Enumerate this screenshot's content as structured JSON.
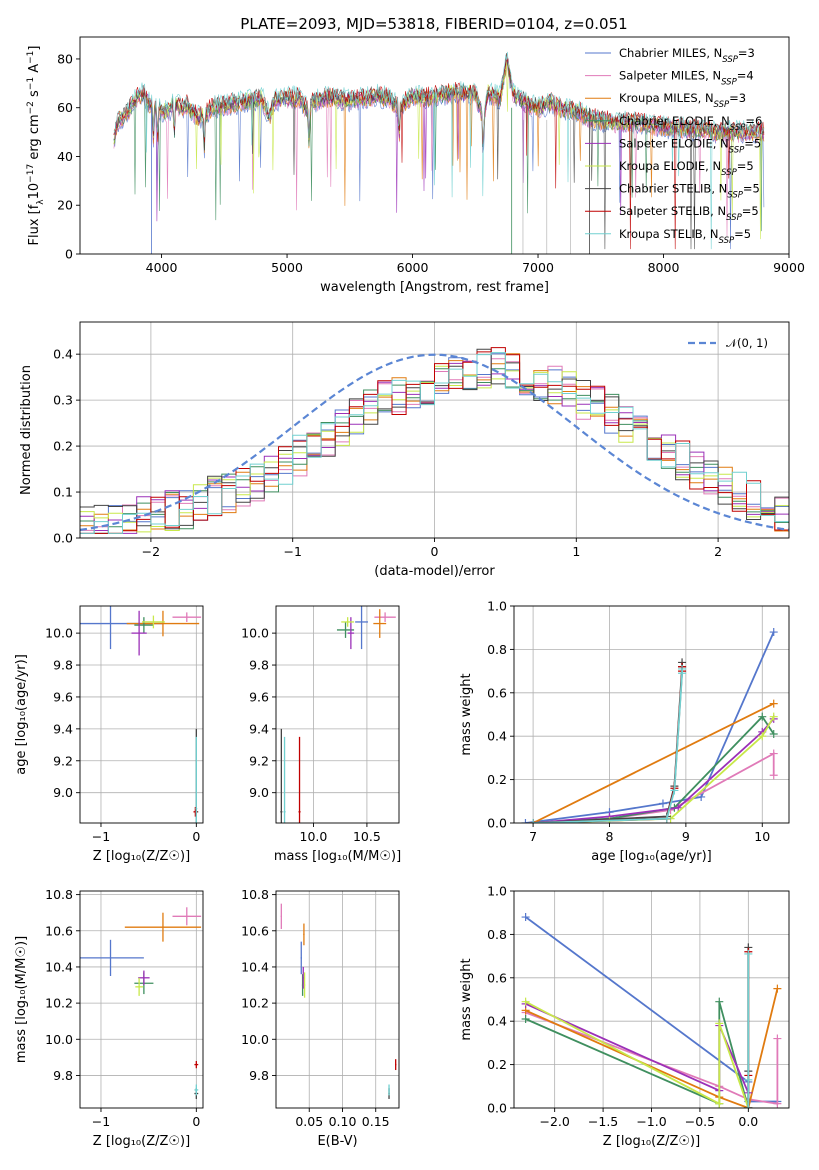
{
  "figure_title": "PLATE=2093, MJD=53818, FIBERID=0104, z=0.051",
  "colors": [
    "#5577cc",
    "#e07ab8",
    "#e07b10",
    "#3f8f5f",
    "#9b30b8",
    "#c8e84a",
    "#444444",
    "#c00000",
    "#70d0d0"
  ],
  "chart_data": [
    {
      "type": "line",
      "name": "spectrum",
      "xlabel": "wavelength [Angstrom, rest frame]",
      "ylabel_parts": [
        "Flux [f",
        "λ",
        "10",
        "−17",
        " erg cm",
        "−2",
        " s",
        "−1",
        " A",
        "−1",
        "]"
      ],
      "xlim": [
        3350,
        9000
      ],
      "ylim": [
        0,
        89
      ],
      "xticks": [
        4000,
        5000,
        6000,
        7000,
        8000,
        9000
      ],
      "yticks": [
        0,
        20,
        40,
        60,
        80
      ],
      "legend_position": "upper-right",
      "legend": [
        {
          "label": "Chabrier MILES, N",
          "sub": "SSP",
          "tail": "=3"
        },
        {
          "label": "Salpeter MILES, N",
          "sub": "SSP",
          "tail": "=4"
        },
        {
          "label": "Kroupa MILES, N",
          "sub": "SSP",
          "tail": "=3"
        },
        {
          "label": "Chabrier ELODIE, N",
          "sub": "SSP",
          "tail": "=6"
        },
        {
          "label": "Salpeter ELODIE, N",
          "sub": "SSP",
          "tail": "=5"
        },
        {
          "label": "Kroupa ELODIE, N",
          "sub": "SSP",
          "tail": "=5"
        },
        {
          "label": "Chabrier STELIB, N",
          "sub": "SSP",
          "tail": "=5"
        },
        {
          "label": "Salpeter STELIB, N",
          "sub": "SSP",
          "tail": "=5"
        },
        {
          "label": "Kroupa STELIB, N",
          "sub": "SSP",
          "tail": "=5"
        }
      ],
      "x": [
        3620,
        3650,
        3700,
        3750,
        3800,
        3850,
        3900,
        3950,
        4000,
        4050,
        4100,
        4150,
        4200,
        4250,
        4300,
        4350,
        4400,
        4500,
        4600,
        4700,
        4800,
        4861,
        4900,
        5000,
        5100,
        5175,
        5200,
        5300,
        5400,
        5500,
        5600,
        5700,
        5800,
        5893,
        5950,
        6000,
        6100,
        6200,
        6300,
        6400,
        6500,
        6563,
        6600,
        6700,
        6750,
        6800,
        6900,
        7000,
        7100,
        7200,
        7300,
        7400,
        7500,
        7600,
        7700,
        7800,
        7900,
        8000,
        8100,
        8200,
        8300,
        8400,
        8500,
        8600,
        8700,
        8800
      ],
      "y": [
        47,
        54,
        57,
        60,
        64,
        66,
        62,
        60,
        59,
        58,
        62,
        60,
        61,
        58,
        56,
        57,
        60,
        61,
        62,
        63,
        64,
        56,
        63,
        64,
        64,
        58,
        62,
        64,
        64,
        63,
        64,
        65,
        64,
        60,
        63,
        65,
        64,
        65,
        66,
        66,
        66,
        55,
        66,
        64,
        80,
        66,
        62,
        60,
        62,
        59,
        59,
        56,
        55,
        54,
        54,
        54,
        53,
        52,
        52,
        51,
        51,
        50,
        50,
        50,
        50,
        50
      ]
    },
    {
      "type": "line",
      "name": "residual-histogram",
      "xlabel": "(data-model)/error",
      "ylabel": "Normed distribution",
      "xlim": [
        -2.5,
        2.5
      ],
      "ylim": [
        0,
        0.47
      ],
      "xticks": [
        -2,
        -1,
        0,
        1,
        2
      ],
      "yticks": [
        0.0,
        0.1,
        0.2,
        0.3,
        0.4
      ],
      "legend_position": "upper-right",
      "legend": [
        {
          "label": "𝒩(0, 1)"
        }
      ],
      "bin_width": 0.1,
      "bin_start": -2.5,
      "base": [
        0.03,
        0.03,
        0.035,
        0.04,
        0.045,
        0.05,
        0.06,
        0.065,
        0.075,
        0.09,
        0.1,
        0.11,
        0.125,
        0.14,
        0.16,
        0.18,
        0.2,
        0.22,
        0.24,
        0.26,
        0.28,
        0.3,
        0.31,
        0.32,
        0.33,
        0.34,
        0.35,
        0.36,
        0.37,
        0.37,
        0.36,
        0.35,
        0.34,
        0.33,
        0.32,
        0.3,
        0.29,
        0.27,
        0.25,
        0.23,
        0.21,
        0.19,
        0.17,
        0.15,
        0.13,
        0.11,
        0.1,
        0.085,
        0.07,
        0.06
      ]
    },
    {
      "type": "scatter",
      "name": "age-vs-metallicity",
      "xlabel": "Z [log₁₀(Z/Z☉)]",
      "ylabel": "age  [log₁₀(age/yr)]",
      "xlim": [
        -1.22,
        0.07
      ],
      "ylim": [
        8.81,
        10.17
      ],
      "xticks": [
        -1,
        0
      ],
      "xtick_labels": [
        "−1",
        "0"
      ],
      "yticks": [
        9.0,
        9.2,
        9.4,
        9.6,
        9.8,
        10.0
      ],
      "points": [
        {
          "s": 0,
          "x": -0.9,
          "y": 10.06,
          "xe": 0.55,
          "ye": 0.16
        },
        {
          "s": 1,
          "x": -0.1,
          "y": 10.1,
          "xe": 0.15,
          "ye": 0.03
        },
        {
          "s": 2,
          "x": -0.35,
          "y": 10.06,
          "xe": 0.38,
          "ye": 0.08
        },
        {
          "s": 3,
          "x": -0.55,
          "y": 10.05,
          "xe": 0.1,
          "ye": 0.05
        },
        {
          "s": 4,
          "x": -0.6,
          "y": 10.0,
          "xe": 0.08,
          "ye": 0.14
        },
        {
          "s": 5,
          "x": -0.45,
          "y": 10.07,
          "xe": 0.12,
          "ye": 0.04
        },
        {
          "s": 6,
          "x": 0.0,
          "y": 8.88,
          "xe": 0.02,
          "ye": 0.52
        },
        {
          "s": 7,
          "x": -0.01,
          "y": 8.88,
          "xe": 0.02,
          "ye": 0.03
        },
        {
          "s": 8,
          "x": 0.0,
          "y": 8.9,
          "xe": 0.01,
          "ye": 0.45
        }
      ]
    },
    {
      "type": "scatter",
      "name": "age-vs-mass",
      "xlabel": "mass [log₁₀(M/M☉)]",
      "ylabel": "",
      "xlim": [
        9.65,
        10.8
      ],
      "ylim": [
        8.81,
        10.17
      ],
      "xticks": [
        10.0,
        10.5
      ],
      "xtick_labels": [
        "10.0",
        "10.5"
      ],
      "yticks": [
        9.0,
        9.2,
        9.4,
        9.6,
        9.8,
        10.0
      ],
      "points": [
        {
          "s": 0,
          "x": 10.45,
          "y": 10.07,
          "xe": 0.06,
          "ye": 0.17
        },
        {
          "s": 1,
          "x": 10.67,
          "y": 10.1,
          "xe": 0.1,
          "ye": 0.03
        },
        {
          "s": 2,
          "x": 10.62,
          "y": 10.06,
          "xe": 0.06,
          "ye": 0.09
        },
        {
          "s": 3,
          "x": 10.3,
          "y": 10.02,
          "xe": 0.08,
          "ye": 0.05
        },
        {
          "s": 4,
          "x": 10.35,
          "y": 10.0,
          "xe": 0.03,
          "ye": 0.1
        },
        {
          "s": 5,
          "x": 10.32,
          "y": 10.07,
          "xe": 0.06,
          "ye": 0.03
        },
        {
          "s": 6,
          "x": 9.7,
          "y": 8.88,
          "xe": 0.01,
          "ye": 0.52
        },
        {
          "s": 7,
          "x": 9.87,
          "y": 8.88,
          "xe": 0.01,
          "ye": 0.47
        },
        {
          "s": 8,
          "x": 9.73,
          "y": 8.88,
          "xe": 0.01,
          "ye": 0.47
        }
      ]
    },
    {
      "type": "line",
      "name": "mass-weight-vs-age",
      "xlabel": "age  [log₁₀(age/yr)]",
      "ylabel": "mass weight",
      "xlim": [
        6.75,
        10.35
      ],
      "ylim": [
        0,
        1.0
      ],
      "xticks": [
        7,
        8,
        9,
        10
      ],
      "yticks": [
        0.0,
        0.2,
        0.4,
        0.6,
        0.8,
        1.0
      ],
      "series": [
        {
          "s": 0,
          "x": [
            6.9,
            8.0,
            8.7,
            9.2,
            10.15
          ],
          "y": [
            0.0,
            0.05,
            0.09,
            0.12,
            0.88
          ]
        },
        {
          "s": 1,
          "x": [
            7.0,
            8.0,
            8.8,
            10.15,
            10.15
          ],
          "y": [
            0.0,
            0.02,
            0.06,
            0.32,
            0.22
          ]
        },
        {
          "s": 2,
          "x": [
            7.0,
            10.15
          ],
          "y": [
            0.0,
            0.55
          ]
        },
        {
          "s": 3,
          "x": [
            7.0,
            8.0,
            8.85,
            10.0,
            10.15
          ],
          "y": [
            0.0,
            0.02,
            0.07,
            0.49,
            0.41
          ]
        },
        {
          "s": 4,
          "x": [
            7.0,
            8.0,
            8.9,
            10.0,
            10.15
          ],
          "y": [
            0.0,
            0.03,
            0.07,
            0.42,
            0.48
          ]
        },
        {
          "s": 5,
          "x": [
            7.0,
            8.0,
            8.8,
            10.0,
            10.15
          ],
          "y": [
            0.0,
            0.01,
            0.02,
            0.4,
            0.49
          ]
        },
        {
          "s": 6,
          "x": [
            7.0,
            8.75,
            8.85,
            8.95,
            8.95
          ],
          "y": [
            0.0,
            0.03,
            0.17,
            0.72,
            0.74
          ]
        },
        {
          "s": 7,
          "x": [
            7.0,
            8.75,
            8.85,
            8.95,
            8.95
          ],
          "y": [
            0.0,
            0.02,
            0.16,
            0.7,
            0.72
          ]
        },
        {
          "s": 8,
          "x": [
            7.0,
            8.75,
            8.85,
            8.95,
            8.95
          ],
          "y": [
            0.0,
            0.02,
            0.15,
            0.69,
            0.71
          ]
        }
      ]
    },
    {
      "type": "scatter",
      "name": "mass-vs-metallicity",
      "xlabel": "Z [log₁₀(Z/Z☉)]",
      "ylabel": "mass [log₁₀(M/M☉)]",
      "xlim": [
        -1.22,
        0.07
      ],
      "ylim": [
        9.62,
        10.82
      ],
      "xticks": [
        -1,
        0
      ],
      "xtick_labels": [
        "−1",
        "0"
      ],
      "yticks": [
        9.8,
        10.0,
        10.2,
        10.4,
        10.6,
        10.8
      ],
      "points": [
        {
          "s": 0,
          "x": -0.9,
          "y": 10.45,
          "xe": 0.35,
          "ye": 0.1
        },
        {
          "s": 1,
          "x": -0.1,
          "y": 10.68,
          "xe": 0.15,
          "ye": 0.05
        },
        {
          "s": 2,
          "x": -0.35,
          "y": 10.62,
          "xe": 0.4,
          "ye": 0.08
        },
        {
          "s": 3,
          "x": -0.55,
          "y": 10.31,
          "xe": 0.1,
          "ye": 0.06
        },
        {
          "s": 4,
          "x": -0.55,
          "y": 10.34,
          "xe": 0.06,
          "ye": 0.04
        },
        {
          "s": 5,
          "x": -0.6,
          "y": 10.29,
          "xe": 0.04,
          "ye": 0.05
        },
        {
          "s": 6,
          "x": 0.0,
          "y": 9.7,
          "xe": 0.02,
          "ye": 0.03
        },
        {
          "s": 7,
          "x": 0.0,
          "y": 9.86,
          "xe": 0.02,
          "ye": 0.02
        },
        {
          "s": 8,
          "x": 0.0,
          "y": 9.72,
          "xe": 0.02,
          "ye": 0.03
        }
      ]
    },
    {
      "type": "scatter",
      "name": "mass-vs-ebv",
      "xlabel": "E(B-V)",
      "ylabel": "",
      "xlim": [
        0.0,
        0.185
      ],
      "ylim": [
        9.62,
        10.82
      ],
      "xticks": [
        0.05,
        0.1,
        0.15
      ],
      "xtick_labels": [
        "0.05",
        "0.10",
        "0.15"
      ],
      "yticks": [
        9.8,
        10.0,
        10.2,
        10.4,
        10.6,
        10.8
      ],
      "points": [
        {
          "s": 0,
          "x": 0.038,
          "y": 10.45,
          "xe": 0.001,
          "ye": 0.09
        },
        {
          "s": 1,
          "x": 0.008,
          "y": 10.68,
          "xe": 0.001,
          "ye": 0.07
        },
        {
          "s": 2,
          "x": 0.042,
          "y": 10.58,
          "xe": 0.001,
          "ye": 0.06
        },
        {
          "s": 3,
          "x": 0.04,
          "y": 10.3,
          "xe": 0.001,
          "ye": 0.06
        },
        {
          "s": 4,
          "x": 0.041,
          "y": 10.34,
          "xe": 0.001,
          "ye": 0.06
        },
        {
          "s": 5,
          "x": 0.043,
          "y": 10.3,
          "xe": 0.001,
          "ye": 0.07
        },
        {
          "s": 6,
          "x": 0.17,
          "y": 9.7,
          "xe": 0.001,
          "ye": 0.03
        },
        {
          "s": 7,
          "x": 0.18,
          "y": 9.86,
          "xe": 0.001,
          "ye": 0.03
        },
        {
          "s": 8,
          "x": 0.17,
          "y": 9.72,
          "xe": 0.001,
          "ye": 0.03
        }
      ]
    },
    {
      "type": "line",
      "name": "mass-weight-vs-metallicity",
      "xlabel": "Z [log₁₀(Z/Z☉)]",
      "ylabel": "mass weight",
      "xlim": [
        -2.42,
        0.42
      ],
      "ylim": [
        0,
        1.0
      ],
      "xticks": [
        -2.0,
        -1.5,
        -1.0,
        -0.5,
        0.0
      ],
      "xtick_labels": [
        "−2.0",
        "−1.5",
        "−1.0",
        "−0.5",
        "0.0"
      ],
      "yticks": [
        0.0,
        0.2,
        0.4,
        0.6,
        0.8,
        1.0
      ],
      "series": [
        {
          "s": 0,
          "x": [
            -2.3,
            0.0,
            0.0,
            0.3
          ],
          "y": [
            0.88,
            0.12,
            0.03,
            0.03
          ]
        },
        {
          "s": 1,
          "x": [
            -2.3,
            -0.3,
            0.0,
            0.3,
            0.3
          ],
          "y": [
            0.44,
            0.1,
            0.04,
            0.02,
            0.32
          ]
        },
        {
          "s": 2,
          "x": [
            -2.3,
            -0.3,
            0.0,
            0.3
          ],
          "y": [
            0.45,
            0.05,
            0.0,
            0.55
          ]
        },
        {
          "s": 3,
          "x": [
            -2.3,
            -0.3,
            -0.3,
            0.0
          ],
          "y": [
            0.41,
            0.02,
            0.49,
            0.0
          ]
        },
        {
          "s": 4,
          "x": [
            -2.3,
            -0.3,
            -0.3,
            0.0
          ],
          "y": [
            0.48,
            0.08,
            0.38,
            0.07
          ]
        },
        {
          "s": 5,
          "x": [
            -2.3,
            -0.3,
            -0.3,
            0.0
          ],
          "y": [
            0.49,
            0.02,
            0.39,
            0.0
          ]
        },
        {
          "s": 6,
          "x": [
            0.0,
            0.0,
            0.0
          ],
          "y": [
            0.0,
            0.17,
            0.74
          ]
        },
        {
          "s": 7,
          "x": [
            0.0,
            0.0,
            0.0
          ],
          "y": [
            0.0,
            0.15,
            0.72
          ]
        },
        {
          "s": 8,
          "x": [
            0.0,
            0.0,
            0.0
          ],
          "y": [
            0.0,
            0.13,
            0.71
          ]
        }
      ]
    }
  ]
}
